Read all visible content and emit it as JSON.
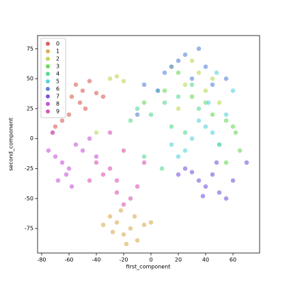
{
  "chart_data": {
    "type": "scatter",
    "x_label": "first_component",
    "y_label": "second_component",
    "xlim": [
      -83,
      79.5
    ],
    "ylim": [
      -95.5,
      86
    ],
    "xticks": [
      -80,
      -60,
      -40,
      -20,
      0,
      20,
      40,
      60
    ],
    "yticks": [
      -75,
      -50,
      -25,
      0,
      25,
      50,
      75
    ],
    "legend": "upper left",
    "series": [
      {
        "name": "0",
        "color": "#db5f57",
        "x": [
          -55,
          -50,
          -45,
          -52,
          -58,
          -40,
          -48,
          -70,
          -65,
          -72,
          -35,
          -60
        ],
        "values": [
          45,
          40,
          48,
          30,
          35,
          38,
          25,
          10,
          15,
          5,
          35,
          20
        ]
      },
      {
        "name": "1",
        "color": "#dbae57",
        "x": [
          -25,
          -20,
          -15,
          -10,
          -30,
          -22,
          -5,
          -18,
          -28,
          -12,
          0,
          -35
        ],
        "values": [
          -70,
          -80,
          -75,
          -85,
          -65,
          -60,
          -72,
          -88,
          -78,
          -65,
          -70,
          -72
        ]
      },
      {
        "name": "2",
        "color": "#b9db57",
        "x": [
          -30,
          -25,
          -20,
          30,
          35,
          25,
          45,
          15,
          40,
          20,
          50,
          -40
        ],
        "values": [
          50,
          52,
          48,
          65,
          55,
          45,
          50,
          60,
          40,
          25,
          30,
          5
        ]
      },
      {
        "name": "3",
        "color": "#69db57",
        "x": [
          60,
          55,
          62,
          50,
          45,
          30,
          10,
          -5,
          65,
          40,
          20,
          55
        ],
        "values": [
          10,
          15,
          5,
          -5,
          20,
          35,
          40,
          30,
          -10,
          30,
          55,
          -20
        ]
      },
      {
        "name": "4",
        "color": "#57db94",
        "x": [
          10,
          0,
          5,
          15,
          -10,
          20,
          25,
          -5,
          30,
          -15,
          35,
          8
        ],
        "values": [
          30,
          20,
          40,
          10,
          25,
          35,
          5,
          -15,
          45,
          15,
          25,
          -25
        ]
      },
      {
        "name": "5",
        "color": "#57d3db",
        "x": [
          40,
          45,
          35,
          50,
          30,
          55,
          25,
          60,
          42,
          20,
          48,
          15
        ],
        "values": [
          10,
          5,
          15,
          -5,
          0,
          20,
          -10,
          40,
          30,
          -15,
          55,
          -5
        ]
      },
      {
        "name": "6",
        "color": "#5784db",
        "x": [
          20,
          25,
          35,
          15,
          30,
          10,
          40,
          -5,
          45,
          55,
          5,
          -10
        ],
        "values": [
          65,
          70,
          75,
          60,
          50,
          55,
          60,
          45,
          45,
          50,
          40,
          20
        ]
      },
      {
        "name": "7",
        "color": "#7957db",
        "x": [
          40,
          50,
          35,
          45,
          55,
          30,
          25,
          60,
          38,
          48,
          70,
          20
        ],
        "values": [
          -40,
          -45,
          -35,
          -30,
          -50,
          -28,
          -25,
          -35,
          -48,
          -20,
          -20,
          -30
        ]
      },
      {
        "name": "8",
        "color": "#c957db",
        "x": [
          -70,
          -65,
          -75,
          -60,
          -55,
          -72,
          -50,
          -45,
          -62,
          -68,
          -40,
          -58
        ],
        "values": [
          -15,
          -20,
          -10,
          -25,
          -5,
          5,
          -10,
          0,
          -30,
          -35,
          -15,
          -40
        ]
      },
      {
        "name": "9",
        "color": "#db57b2",
        "x": [
          -35,
          -30,
          -25,
          -20,
          -15,
          -40,
          -10,
          -25,
          -45,
          -5,
          -30,
          -20
        ],
        "values": [
          -30,
          -25,
          -35,
          -55,
          -50,
          -20,
          -40,
          -45,
          -35,
          -20,
          5,
          -10
        ]
      }
    ]
  }
}
